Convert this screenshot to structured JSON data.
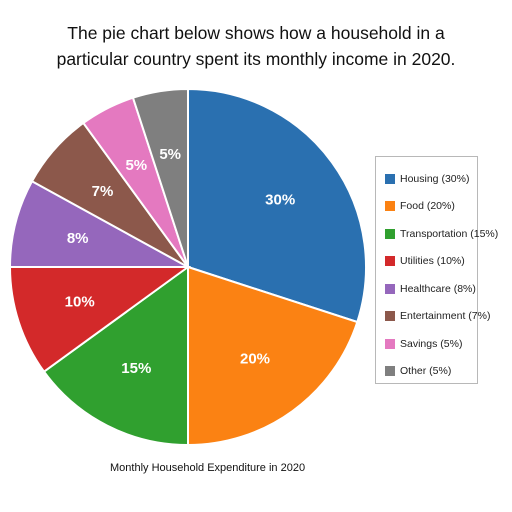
{
  "title_lines": [
    "The pie chart below shows how a household in a",
    "particular country spent its monthly income in 2020."
  ],
  "caption": "Monthly Household Expenditure in 2020",
  "chart_data": {
    "type": "pie",
    "title": "",
    "legend_placement": "right",
    "slices": [
      {
        "category": "Housing",
        "value": 30,
        "label": "30%",
        "legend": "Housing (30%)",
        "color": "#2a70b0"
      },
      {
        "category": "Food",
        "value": 20,
        "label": "20%",
        "legend": "Food (20%)",
        "color": "#fb8213"
      },
      {
        "category": "Transportation",
        "value": 15,
        "label": "15%",
        "legend": "Transportation (15%)",
        "color": "#30a02f"
      },
      {
        "category": "Utilities",
        "value": 10,
        "label": "10%",
        "legend": "Utilities (10%)",
        "color": "#d3292a"
      },
      {
        "category": "Healthcare",
        "value": 8,
        "label": "8%",
        "legend": "Healthcare (8%)",
        "color": "#9567bc"
      },
      {
        "category": "Entertainment",
        "value": 7,
        "label": "7%",
        "legend": "Entertainment (7%)",
        "color": "#8c584b"
      },
      {
        "category": "Savings",
        "value": 5,
        "label": "5%",
        "legend": "Savings (5%)",
        "color": "#e479c0"
      },
      {
        "category": "Other",
        "value": 5,
        "label": "5%",
        "legend": "Other (5%)",
        "color": "#7f7f7f"
      }
    ]
  }
}
